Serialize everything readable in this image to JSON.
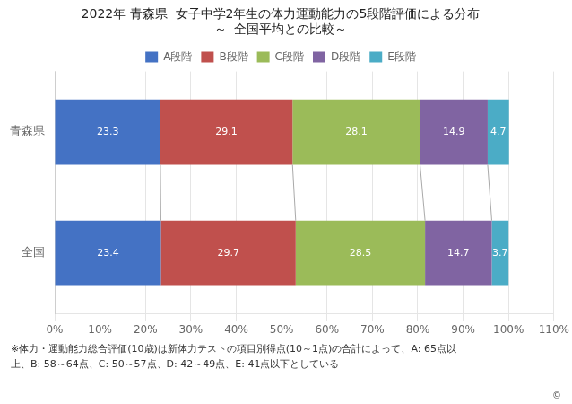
{
  "chart_data": {
    "type": "bar",
    "title": "2022年 青森県  女子中学2年生の体力運動能力の5段階評価による分布",
    "subtitle": "～  全国平均との比較～",
    "orientation": "horizontal",
    "stacked": true,
    "categories": [
      "青森県",
      "全国"
    ],
    "series": [
      {
        "name": "A段階",
        "color": "#4472C4",
        "values": [
          23.3,
          23.4
        ]
      },
      {
        "name": "B段階",
        "color": "#C0504D",
        "values": [
          29.1,
          29.7
        ]
      },
      {
        "name": "C段階",
        "color": "#9BBB59",
        "values": [
          28.1,
          28.5
        ]
      },
      {
        "name": "D段階",
        "color": "#8064A2",
        "values": [
          14.9,
          14.7
        ]
      },
      {
        "name": "E段階",
        "color": "#4BACC6",
        "values": [
          4.7,
          3.7
        ]
      }
    ],
    "xlim": [
      0,
      110
    ],
    "xticks": [
      {
        "value": 0,
        "label": "0%"
      },
      {
        "value": 10,
        "label": "10%"
      },
      {
        "value": 20,
        "label": "20%"
      },
      {
        "value": 30,
        "label": "30%"
      },
      {
        "value": 40,
        "label": "40%"
      },
      {
        "value": 50,
        "label": "50%"
      },
      {
        "value": 60,
        "label": "60%"
      },
      {
        "value": 70,
        "label": "70%"
      },
      {
        "value": 80,
        "label": "80%"
      },
      {
        "value": 90,
        "label": "90%"
      },
      {
        "value": 100,
        "label": "100%"
      },
      {
        "value": 110,
        "label": "110%"
      }
    ],
    "grid": true,
    "legend": "top",
    "data_labels": true,
    "annotations": [
      "※体力・運動能力総合評価(10歳)は新体力テストの項目別得点(10～1点)の合計によって、A: 65点以",
      "上、B: 58～64点、C: 50～57点、D: 42～49点、E: 41点以下としている",
      "©"
    ]
  }
}
